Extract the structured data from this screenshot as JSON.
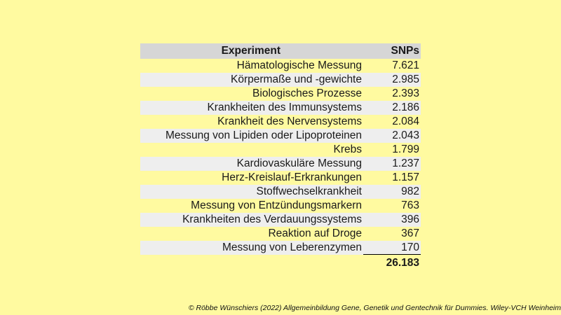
{
  "table": {
    "headers": {
      "experiment": "Experiment",
      "snps": "SNPs"
    },
    "rows": [
      {
        "experiment": "Hämatologische Messung",
        "snps": "7.621"
      },
      {
        "experiment": "Körpermaße und -gewichte",
        "snps": "2.985"
      },
      {
        "experiment": "Biologisches Prozesse",
        "snps": "2.393"
      },
      {
        "experiment": "Krankheiten des Immunsystems",
        "snps": "2.186"
      },
      {
        "experiment": "Krankheit des Nervensystems",
        "snps": "2.084"
      },
      {
        "experiment": "Messung von Lipiden oder Lipoproteinen",
        "snps": "2.043"
      },
      {
        "experiment": "Krebs",
        "snps": "1.799"
      },
      {
        "experiment": "Kardiovaskuläre Messung",
        "snps": "1.237"
      },
      {
        "experiment": "Herz-Kreislauf-Erkrankungen",
        "snps": "1.157"
      },
      {
        "experiment": "Stoffwechselkrankheit",
        "snps": "982"
      },
      {
        "experiment": "Messung von Entzündungsmarkern",
        "snps": "763"
      },
      {
        "experiment": "Krankheiten des Verdauungssystems",
        "snps": "396"
      },
      {
        "experiment": "Reaktion auf Droge",
        "snps": "367"
      },
      {
        "experiment": "Messung von Leberenzymen",
        "snps": "170"
      }
    ],
    "total": "26.183"
  },
  "footer": "© Röbbe Wünschiers (2022) Allgemeinbildung Gene, Genetik und Gentechnik für Dummies. Wiley-VCH Weinheim"
}
